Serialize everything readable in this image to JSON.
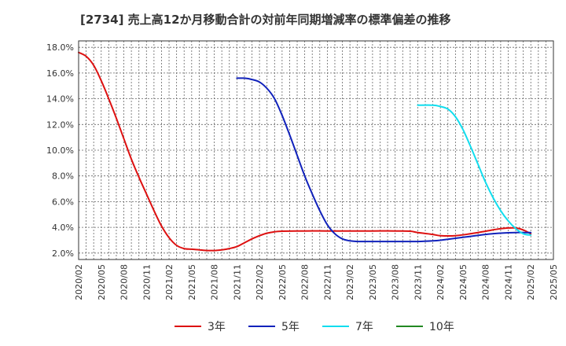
{
  "chart_data": {
    "type": "line",
    "title": "[2734]  売上高12か月移動合計の対前年同期増減率の標準偏差の推移",
    "xlabel": "",
    "ylabel": "",
    "ylim": [
      1.5,
      18.5
    ],
    "y_ticks": [
      "2.0%",
      "4.0%",
      "6.0%",
      "8.0%",
      "10.0%",
      "12.0%",
      "14.0%",
      "16.0%",
      "18.0%"
    ],
    "x_ticks": [
      "2020/02",
      "2020/05",
      "2020/08",
      "2020/11",
      "2021/02",
      "2021/05",
      "2021/08",
      "2021/11",
      "2022/02",
      "2022/05",
      "2022/08",
      "2022/11",
      "2023/02",
      "2023/05",
      "2023/08",
      "2023/11",
      "2024/02",
      "2024/05",
      "2024/08",
      "2024/11",
      "2025/02",
      "2025/05"
    ],
    "grid": true,
    "legend_position": "bottom",
    "series": [
      {
        "name": "3年",
        "color": "#dd1111",
        "points": [
          [
            "2020/02",
            17.6
          ],
          [
            "2020/03",
            17.3
          ],
          [
            "2020/04",
            16.6
          ],
          [
            "2020/05",
            15.4
          ],
          [
            "2020/06",
            14.0
          ],
          [
            "2020/07",
            12.5
          ],
          [
            "2020/08",
            10.9
          ],
          [
            "2020/09",
            9.3
          ],
          [
            "2020/10",
            7.9
          ],
          [
            "2020/11",
            6.6
          ],
          [
            "2020/12",
            5.3
          ],
          [
            "2021/01",
            4.1
          ],
          [
            "2021/02",
            3.2
          ],
          [
            "2021/03",
            2.6
          ],
          [
            "2021/04",
            2.35
          ],
          [
            "2021/05",
            2.3
          ],
          [
            "2021/06",
            2.25
          ],
          [
            "2021/07",
            2.2
          ],
          [
            "2021/08",
            2.2
          ],
          [
            "2021/09",
            2.25
          ],
          [
            "2021/10",
            2.35
          ],
          [
            "2021/11",
            2.5
          ],
          [
            "2021/12",
            2.8
          ],
          [
            "2022/01",
            3.1
          ],
          [
            "2022/02",
            3.35
          ],
          [
            "2022/03",
            3.55
          ],
          [
            "2022/04",
            3.65
          ],
          [
            "2022/05",
            3.7
          ],
          [
            "2022/08",
            3.72
          ],
          [
            "2022/11",
            3.72
          ],
          [
            "2023/02",
            3.72
          ],
          [
            "2023/05",
            3.72
          ],
          [
            "2023/08",
            3.72
          ],
          [
            "2023/10",
            3.7
          ],
          [
            "2023/11",
            3.6
          ],
          [
            "2024/01",
            3.45
          ],
          [
            "2024/02",
            3.35
          ],
          [
            "2024/04",
            3.35
          ],
          [
            "2024/06",
            3.5
          ],
          [
            "2024/08",
            3.7
          ],
          [
            "2024/10",
            3.9
          ],
          [
            "2024/11",
            3.95
          ],
          [
            "2024/12",
            3.95
          ],
          [
            "2025/01",
            3.8
          ],
          [
            "2025/02",
            3.5
          ]
        ]
      },
      {
        "name": "5年",
        "color": "#1122bb",
        "points": [
          [
            "2021/11",
            15.6
          ],
          [
            "2021/12",
            15.6
          ],
          [
            "2022/01",
            15.5
          ],
          [
            "2022/02",
            15.3
          ],
          [
            "2022/03",
            14.8
          ],
          [
            "2022/04",
            14.0
          ],
          [
            "2022/05",
            12.7
          ],
          [
            "2022/06",
            11.2
          ],
          [
            "2022/07",
            9.6
          ],
          [
            "2022/08",
            8.0
          ],
          [
            "2022/09",
            6.6
          ],
          [
            "2022/10",
            5.3
          ],
          [
            "2022/11",
            4.2
          ],
          [
            "2022/12",
            3.5
          ],
          [
            "2023/01",
            3.1
          ],
          [
            "2023/02",
            2.95
          ],
          [
            "2023/03",
            2.9
          ],
          [
            "2023/05",
            2.9
          ],
          [
            "2023/08",
            2.9
          ],
          [
            "2023/11",
            2.9
          ],
          [
            "2024/01",
            2.95
          ],
          [
            "2024/02",
            3.0
          ],
          [
            "2024/04",
            3.15
          ],
          [
            "2024/06",
            3.3
          ],
          [
            "2024/08",
            3.45
          ],
          [
            "2024/10",
            3.55
          ],
          [
            "2024/12",
            3.6
          ],
          [
            "2025/01",
            3.6
          ],
          [
            "2025/02",
            3.6
          ]
        ]
      },
      {
        "name": "7年",
        "color": "#11ddee",
        "points": [
          [
            "2023/11",
            13.5
          ],
          [
            "2024/01",
            13.5
          ],
          [
            "2024/02",
            13.4
          ],
          [
            "2024/03",
            13.2
          ],
          [
            "2024/04",
            12.6
          ],
          [
            "2024/05",
            11.6
          ],
          [
            "2024/06",
            10.3
          ],
          [
            "2024/07",
            8.9
          ],
          [
            "2024/08",
            7.5
          ],
          [
            "2024/09",
            6.3
          ],
          [
            "2024/10",
            5.3
          ],
          [
            "2024/11",
            4.5
          ],
          [
            "2024/12",
            3.9
          ],
          [
            "2025/01",
            3.5
          ],
          [
            "2025/02",
            3.4
          ]
        ]
      },
      {
        "name": "10年",
        "color": "#228822",
        "points": []
      }
    ]
  }
}
